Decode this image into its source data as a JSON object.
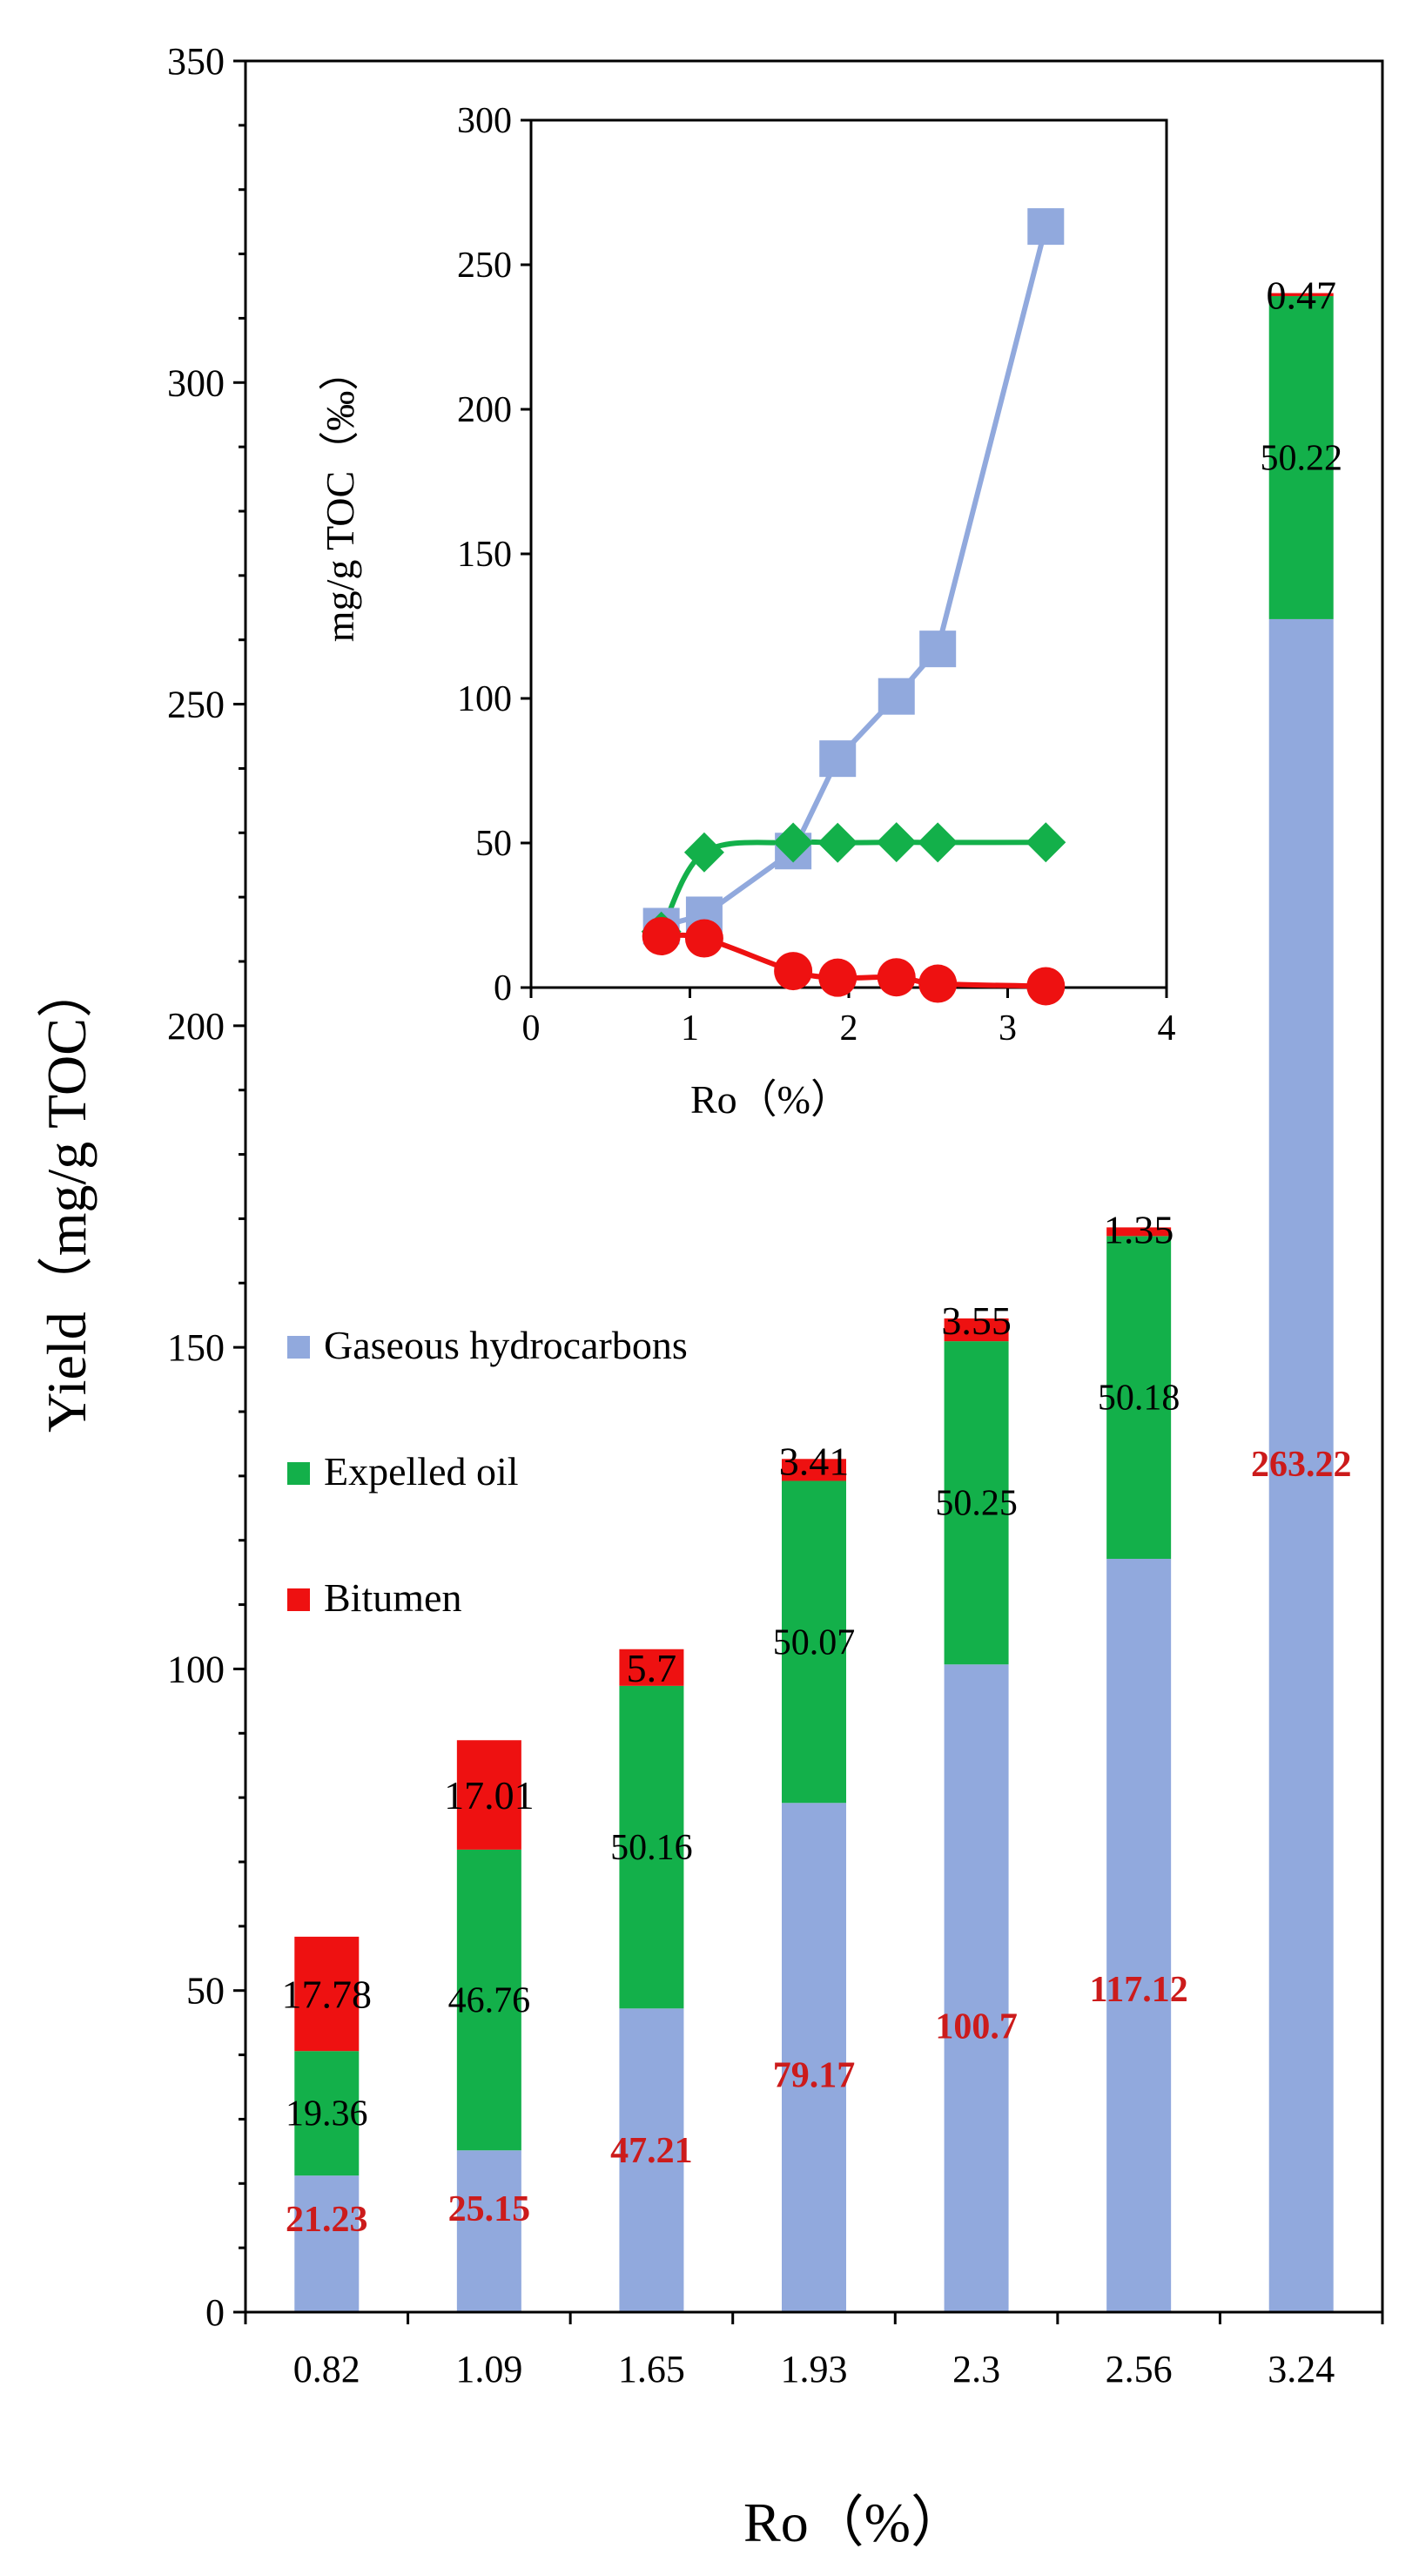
{
  "chart_data": [
    {
      "type": "stacked-bar",
      "title": "",
      "xlabel": "Ro（%）",
      "ylabel": "Yield（mg/g TOC）",
      "ylim": [
        0,
        350
      ],
      "yticks": [
        0,
        50,
        100,
        150,
        200,
        250,
        300,
        350
      ],
      "categories": [
        "0.82",
        "1.09",
        "1.65",
        "1.93",
        "2.3",
        "2.56",
        "3.24"
      ],
      "series": [
        {
          "name": "Gaseous hydrocarbons",
          "color": "#91a9dd",
          "label_color": "#cc1b1b",
          "values": [
            21.23,
            25.15,
            47.21,
            79.17,
            100.7,
            117.12,
            263.22
          ],
          "labels": [
            "21.23",
            "25.15",
            "47.21",
            "79.17",
            "100.7",
            "117.12",
            "263.22"
          ]
        },
        {
          "name": "Expelled oil",
          "color": "#13b04a",
          "label_color": "#000000",
          "values": [
            19.36,
            46.76,
            50.16,
            50.07,
            50.25,
            50.18,
            50.22
          ],
          "labels": [
            "19.36",
            "46.76",
            "50.16",
            "50.07",
            "50.25",
            "50.18",
            "50.22"
          ]
        },
        {
          "name": "Bitumen",
          "color": "#ee1111",
          "label_color": "#000000",
          "values": [
            17.78,
            17.01,
            5.7,
            3.41,
            3.55,
            1.35,
            0.47
          ],
          "labels": [
            "17.78",
            "17.01",
            "5.7",
            "3.41",
            "3.55",
            "1.35",
            "0.47"
          ]
        }
      ],
      "legend": "left-middle"
    },
    {
      "type": "line",
      "title": "",
      "xlabel": "Ro（%）",
      "ylabel": "mg/g TOC（‰）",
      "xlim": [
        0,
        4
      ],
      "ylim": [
        0,
        300
      ],
      "xticks": [
        0,
        1,
        2,
        3,
        4
      ],
      "yticks": [
        0,
        50,
        100,
        150,
        200,
        250,
        300
      ],
      "x": [
        0.82,
        1.09,
        1.65,
        1.93,
        2.3,
        2.56,
        3.24
      ],
      "series": [
        {
          "name": "Gaseous hydrocarbons",
          "color": "#91a9dd",
          "marker": "square",
          "values": [
            21.23,
            25.15,
            47.21,
            79.17,
            100.7,
            117.12,
            263.22
          ]
        },
        {
          "name": "Expelled oil",
          "color": "#13b04a",
          "marker": "diamond",
          "values": [
            19.36,
            46.76,
            50.16,
            50.07,
            50.25,
            50.18,
            50.22
          ]
        },
        {
          "name": "Bitumen",
          "color": "#ee1111",
          "marker": "circle",
          "values": [
            17.78,
            17.01,
            5.7,
            3.41,
            3.55,
            1.35,
            0.47
          ]
        }
      ]
    }
  ]
}
